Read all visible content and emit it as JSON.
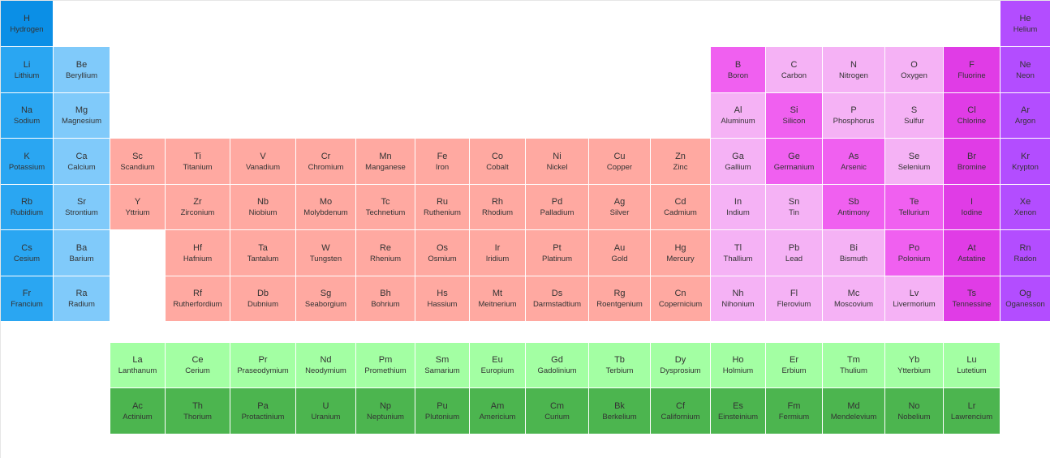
{
  "colors": {
    "hydrogen": "#0b8fe6",
    "alkali": "#2aa6f2",
    "alkaline": "#80cafa",
    "transition": "#ffa9a1",
    "lanthanide": "#a3ffa3",
    "actinide": "#4cb54f",
    "p_light": "#f5b2f5",
    "p_mid": "#f060f0",
    "halogen": "#e03ce6",
    "noble": "#b34dff"
  },
  "elements": [
    {
      "symbol": "H",
      "name": "Hydrogen",
      "row": 1,
      "col": 1,
      "category": "hydrogen"
    },
    {
      "symbol": "He",
      "name": "Helium",
      "row": 1,
      "col": 18,
      "category": "noble"
    },
    {
      "symbol": "Li",
      "name": "Lithium",
      "row": 2,
      "col": 1,
      "category": "alkali"
    },
    {
      "symbol": "Be",
      "name": "Beryllium",
      "row": 2,
      "col": 2,
      "category": "alkaline"
    },
    {
      "symbol": "B",
      "name": "Boron",
      "row": 2,
      "col": 13,
      "category": "p_mid"
    },
    {
      "symbol": "C",
      "name": "Carbon",
      "row": 2,
      "col": 14,
      "category": "p_light"
    },
    {
      "symbol": "N",
      "name": "Nitrogen",
      "row": 2,
      "col": 15,
      "category": "p_light"
    },
    {
      "symbol": "O",
      "name": "Oxygen",
      "row": 2,
      "col": 16,
      "category": "p_light"
    },
    {
      "symbol": "F",
      "name": "Fluorine",
      "row": 2,
      "col": 17,
      "category": "halogen"
    },
    {
      "symbol": "Ne",
      "name": "Neon",
      "row": 2,
      "col": 18,
      "category": "noble"
    },
    {
      "symbol": "Na",
      "name": "Sodium",
      "row": 3,
      "col": 1,
      "category": "alkali"
    },
    {
      "symbol": "Mg",
      "name": "Magnesium",
      "row": 3,
      "col": 2,
      "category": "alkaline"
    },
    {
      "symbol": "Al",
      "name": "Aluminum",
      "row": 3,
      "col": 13,
      "category": "p_light"
    },
    {
      "symbol": "Si",
      "name": "Silicon",
      "row": 3,
      "col": 14,
      "category": "p_mid"
    },
    {
      "symbol": "P",
      "name": "Phosphorus",
      "row": 3,
      "col": 15,
      "category": "p_light"
    },
    {
      "symbol": "S",
      "name": "Sulfur",
      "row": 3,
      "col": 16,
      "category": "p_light"
    },
    {
      "symbol": "Cl",
      "name": "Chlorine",
      "row": 3,
      "col": 17,
      "category": "halogen"
    },
    {
      "symbol": "Ar",
      "name": "Argon",
      "row": 3,
      "col": 18,
      "category": "noble"
    },
    {
      "symbol": "K",
      "name": "Potassium",
      "row": 4,
      "col": 1,
      "category": "alkali"
    },
    {
      "symbol": "Ca",
      "name": "Calcium",
      "row": 4,
      "col": 2,
      "category": "alkaline"
    },
    {
      "symbol": "Sc",
      "name": "Scandium",
      "row": 4,
      "col": 3,
      "category": "transition"
    },
    {
      "symbol": "Ti",
      "name": "Titanium",
      "row": 4,
      "col": 4,
      "category": "transition"
    },
    {
      "symbol": "V",
      "name": "Vanadium",
      "row": 4,
      "col": 5,
      "category": "transition"
    },
    {
      "symbol": "Cr",
      "name": "Chromium",
      "row": 4,
      "col": 6,
      "category": "transition"
    },
    {
      "symbol": "Mn",
      "name": "Manganese",
      "row": 4,
      "col": 7,
      "category": "transition"
    },
    {
      "symbol": "Fe",
      "name": "Iron",
      "row": 4,
      "col": 8,
      "category": "transition"
    },
    {
      "symbol": "Co",
      "name": "Cobalt",
      "row": 4,
      "col": 9,
      "category": "transition"
    },
    {
      "symbol": "Ni",
      "name": "Nickel",
      "row": 4,
      "col": 10,
      "category": "transition"
    },
    {
      "symbol": "Cu",
      "name": "Copper",
      "row": 4,
      "col": 11,
      "category": "transition"
    },
    {
      "symbol": "Zn",
      "name": "Zinc",
      "row": 4,
      "col": 12,
      "category": "transition"
    },
    {
      "symbol": "Ga",
      "name": "Gallium",
      "row": 4,
      "col": 13,
      "category": "p_light"
    },
    {
      "symbol": "Ge",
      "name": "Germanium",
      "row": 4,
      "col": 14,
      "category": "p_mid"
    },
    {
      "symbol": "As",
      "name": "Arsenic",
      "row": 4,
      "col": 15,
      "category": "p_mid"
    },
    {
      "symbol": "Se",
      "name": "Selenium",
      "row": 4,
      "col": 16,
      "category": "p_light"
    },
    {
      "symbol": "Br",
      "name": "Bromine",
      "row": 4,
      "col": 17,
      "category": "halogen"
    },
    {
      "symbol": "Kr",
      "name": "Krypton",
      "row": 4,
      "col": 18,
      "category": "noble"
    },
    {
      "symbol": "Rb",
      "name": "Rubidium",
      "row": 5,
      "col": 1,
      "category": "alkali"
    },
    {
      "symbol": "Sr",
      "name": "Strontium",
      "row": 5,
      "col": 2,
      "category": "alkaline"
    },
    {
      "symbol": "Y",
      "name": "Yttrium",
      "row": 5,
      "col": 3,
      "category": "transition"
    },
    {
      "symbol": "Zr",
      "name": "Zirconium",
      "row": 5,
      "col": 4,
      "category": "transition"
    },
    {
      "symbol": "Nb",
      "name": "Niobium",
      "row": 5,
      "col": 5,
      "category": "transition"
    },
    {
      "symbol": "Mo",
      "name": "Molybdenum",
      "row": 5,
      "col": 6,
      "category": "transition"
    },
    {
      "symbol": "Tc",
      "name": "Technetium",
      "row": 5,
      "col": 7,
      "category": "transition"
    },
    {
      "symbol": "Ru",
      "name": "Ruthenium",
      "row": 5,
      "col": 8,
      "category": "transition"
    },
    {
      "symbol": "Rh",
      "name": "Rhodium",
      "row": 5,
      "col": 9,
      "category": "transition"
    },
    {
      "symbol": "Pd",
      "name": "Palladium",
      "row": 5,
      "col": 10,
      "category": "transition"
    },
    {
      "symbol": "Ag",
      "name": "Silver",
      "row": 5,
      "col": 11,
      "category": "transition"
    },
    {
      "symbol": "Cd",
      "name": "Cadmium",
      "row": 5,
      "col": 12,
      "category": "transition"
    },
    {
      "symbol": "In",
      "name": "Indium",
      "row": 5,
      "col": 13,
      "category": "p_light"
    },
    {
      "symbol": "Sn",
      "name": "Tin",
      "row": 5,
      "col": 14,
      "category": "p_light"
    },
    {
      "symbol": "Sb",
      "name": "Antimony",
      "row": 5,
      "col": 15,
      "category": "p_mid"
    },
    {
      "symbol": "Te",
      "name": "Tellurium",
      "row": 5,
      "col": 16,
      "category": "p_mid"
    },
    {
      "symbol": "I",
      "name": "Iodine",
      "row": 5,
      "col": 17,
      "category": "halogen"
    },
    {
      "symbol": "Xe",
      "name": "Xenon",
      "row": 5,
      "col": 18,
      "category": "noble"
    },
    {
      "symbol": "Cs",
      "name": "Cesium",
      "row": 6,
      "col": 1,
      "category": "alkali"
    },
    {
      "symbol": "Ba",
      "name": "Barium",
      "row": 6,
      "col": 2,
      "category": "alkaline"
    },
    {
      "symbol": "Hf",
      "name": "Hafnium",
      "row": 6,
      "col": 4,
      "category": "transition"
    },
    {
      "symbol": "Ta",
      "name": "Tantalum",
      "row": 6,
      "col": 5,
      "category": "transition"
    },
    {
      "symbol": "W",
      "name": "Tungsten",
      "row": 6,
      "col": 6,
      "category": "transition"
    },
    {
      "symbol": "Re",
      "name": "Rhenium",
      "row": 6,
      "col": 7,
      "category": "transition"
    },
    {
      "symbol": "Os",
      "name": "Osmium",
      "row": 6,
      "col": 8,
      "category": "transition"
    },
    {
      "symbol": "Ir",
      "name": "Iridium",
      "row": 6,
      "col": 9,
      "category": "transition"
    },
    {
      "symbol": "Pt",
      "name": "Platinum",
      "row": 6,
      "col": 10,
      "category": "transition"
    },
    {
      "symbol": "Au",
      "name": "Gold",
      "row": 6,
      "col": 11,
      "category": "transition"
    },
    {
      "symbol": "Hg",
      "name": "Mercury",
      "row": 6,
      "col": 12,
      "category": "transition"
    },
    {
      "symbol": "Tl",
      "name": "Thallium",
      "row": 6,
      "col": 13,
      "category": "p_light"
    },
    {
      "symbol": "Pb",
      "name": "Lead",
      "row": 6,
      "col": 14,
      "category": "p_light"
    },
    {
      "symbol": "Bi",
      "name": "Bismuth",
      "row": 6,
      "col": 15,
      "category": "p_light"
    },
    {
      "symbol": "Po",
      "name": "Polonium",
      "row": 6,
      "col": 16,
      "category": "p_mid"
    },
    {
      "symbol": "At",
      "name": "Astatine",
      "row": 6,
      "col": 17,
      "category": "halogen"
    },
    {
      "symbol": "Rn",
      "name": "Radon",
      "row": 6,
      "col": 18,
      "category": "noble"
    },
    {
      "symbol": "Fr",
      "name": "Francium",
      "row": 7,
      "col": 1,
      "category": "alkali"
    },
    {
      "symbol": "Ra",
      "name": "Radium",
      "row": 7,
      "col": 2,
      "category": "alkaline"
    },
    {
      "symbol": "Rf",
      "name": "Rutherfordium",
      "row": 7,
      "col": 4,
      "category": "transition"
    },
    {
      "symbol": "Db",
      "name": "Dubnium",
      "row": 7,
      "col": 5,
      "category": "transition"
    },
    {
      "symbol": "Sg",
      "name": "Seaborgium",
      "row": 7,
      "col": 6,
      "category": "transition"
    },
    {
      "symbol": "Bh",
      "name": "Bohrium",
      "row": 7,
      "col": 7,
      "category": "transition"
    },
    {
      "symbol": "Hs",
      "name": "Hassium",
      "row": 7,
      "col": 8,
      "category": "transition"
    },
    {
      "symbol": "Mt",
      "name": "Meitnerium",
      "row": 7,
      "col": 9,
      "category": "transition"
    },
    {
      "symbol": "Ds",
      "name": "Darmstadtium",
      "row": 7,
      "col": 10,
      "category": "transition"
    },
    {
      "symbol": "Rg",
      "name": "Roentgenium",
      "row": 7,
      "col": 11,
      "category": "transition"
    },
    {
      "symbol": "Cn",
      "name": "Copernicium",
      "row": 7,
      "col": 12,
      "category": "transition"
    },
    {
      "symbol": "Nh",
      "name": "Nihonium",
      "row": 7,
      "col": 13,
      "category": "p_light"
    },
    {
      "symbol": "Fl",
      "name": "Flerovium",
      "row": 7,
      "col": 14,
      "category": "p_light"
    },
    {
      "symbol": "Mc",
      "name": "Moscovium",
      "row": 7,
      "col": 15,
      "category": "p_light"
    },
    {
      "symbol": "Lv",
      "name": "Livermorium",
      "row": 7,
      "col": 16,
      "category": "p_light"
    },
    {
      "symbol": "Ts",
      "name": "Tennessine",
      "row": 7,
      "col": 17,
      "category": "halogen"
    },
    {
      "symbol": "Og",
      "name": "Oganesson",
      "row": 7,
      "col": 18,
      "category": "noble"
    },
    {
      "symbol": "La",
      "name": "Lanthanum",
      "row": 9,
      "col": 3,
      "category": "lanthanide"
    },
    {
      "symbol": "Ce",
      "name": "Cerium",
      "row": 9,
      "col": 4,
      "category": "lanthanide"
    },
    {
      "symbol": "Pr",
      "name": "Praseodymium",
      "row": 9,
      "col": 5,
      "category": "lanthanide"
    },
    {
      "symbol": "Nd",
      "name": "Neodymium",
      "row": 9,
      "col": 6,
      "category": "lanthanide"
    },
    {
      "symbol": "Pm",
      "name": "Promethium",
      "row": 9,
      "col": 7,
      "category": "lanthanide"
    },
    {
      "symbol": "Sm",
      "name": "Samarium",
      "row": 9,
      "col": 8,
      "category": "lanthanide"
    },
    {
      "symbol": "Eu",
      "name": "Europium",
      "row": 9,
      "col": 9,
      "category": "lanthanide"
    },
    {
      "symbol": "Gd",
      "name": "Gadolinium",
      "row": 9,
      "col": 10,
      "category": "lanthanide"
    },
    {
      "symbol": "Tb",
      "name": "Terbium",
      "row": 9,
      "col": 11,
      "category": "lanthanide"
    },
    {
      "symbol": "Dy",
      "name": "Dysprosium",
      "row": 9,
      "col": 12,
      "category": "lanthanide"
    },
    {
      "symbol": "Ho",
      "name": "Holmium",
      "row": 9,
      "col": 13,
      "category": "lanthanide"
    },
    {
      "symbol": "Er",
      "name": "Erbium",
      "row": 9,
      "col": 14,
      "category": "lanthanide"
    },
    {
      "symbol": "Tm",
      "name": "Thulium",
      "row": 9,
      "col": 15,
      "category": "lanthanide"
    },
    {
      "symbol": "Yb",
      "name": "Ytterbium",
      "row": 9,
      "col": 16,
      "category": "lanthanide"
    },
    {
      "symbol": "Lu",
      "name": "Lutetium",
      "row": 9,
      "col": 17,
      "category": "lanthanide"
    },
    {
      "symbol": "Ac",
      "name": "Actinium",
      "row": 10,
      "col": 3,
      "category": "actinide"
    },
    {
      "symbol": "Th",
      "name": "Thorium",
      "row": 10,
      "col": 4,
      "category": "actinide"
    },
    {
      "symbol": "Pa",
      "name": "Protactinium",
      "row": 10,
      "col": 5,
      "category": "actinide"
    },
    {
      "symbol": "U",
      "name": "Uranium",
      "row": 10,
      "col": 6,
      "category": "actinide"
    },
    {
      "symbol": "Np",
      "name": "Neptunium",
      "row": 10,
      "col": 7,
      "category": "actinide"
    },
    {
      "symbol": "Pu",
      "name": "Plutonium",
      "row": 10,
      "col": 8,
      "category": "actinide"
    },
    {
      "symbol": "Am",
      "name": "Americium",
      "row": 10,
      "col": 9,
      "category": "actinide"
    },
    {
      "symbol": "Cm",
      "name": "Curium",
      "row": 10,
      "col": 10,
      "category": "actinide"
    },
    {
      "symbol": "Bk",
      "name": "Berkelium",
      "row": 10,
      "col": 11,
      "category": "actinide"
    },
    {
      "symbol": "Cf",
      "name": "Californium",
      "row": 10,
      "col": 12,
      "category": "actinide"
    },
    {
      "symbol": "Es",
      "name": "Einsteinium",
      "row": 10,
      "col": 13,
      "category": "actinide"
    },
    {
      "symbol": "Fm",
      "name": "Fermium",
      "row": 10,
      "col": 14,
      "category": "actinide"
    },
    {
      "symbol": "Md",
      "name": "Mendelevium",
      "row": 10,
      "col": 15,
      "category": "actinide"
    },
    {
      "symbol": "No",
      "name": "Nobelium",
      "row": 10,
      "col": 16,
      "category": "actinide"
    },
    {
      "symbol": "Lr",
      "name": "Lawrencium",
      "row": 10,
      "col": 17,
      "category": "actinide"
    }
  ]
}
